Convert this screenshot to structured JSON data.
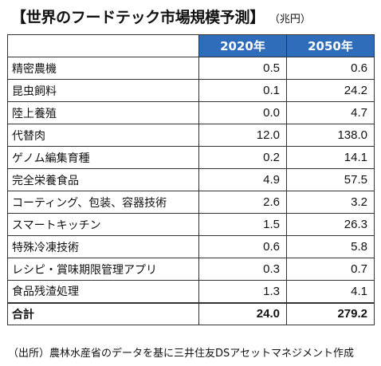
{
  "header": {
    "title": "【世界のフードテック市場規模予測】",
    "unit": "（兆円）"
  },
  "table": {
    "columns": [
      "",
      "2020年",
      "2050年"
    ],
    "rows": [
      {
        "label": "精密農機",
        "y2020": "0.5",
        "y2050": "0.6"
      },
      {
        "label": "昆虫飼料",
        "y2020": "0.1",
        "y2050": "24.2"
      },
      {
        "label": "陸上養殖",
        "y2020": "0.0",
        "y2050": "4.7"
      },
      {
        "label": "代替肉",
        "y2020": "12.0",
        "y2050": "138.0"
      },
      {
        "label": "ゲノム編集育種",
        "y2020": "0.2",
        "y2050": "14.1"
      },
      {
        "label": "完全栄養食品",
        "y2020": "4.9",
        "y2050": "57.5"
      },
      {
        "label": "コーティング、包装、容器技術",
        "y2020": "2.6",
        "y2050": "3.2"
      },
      {
        "label": "スマートキッチン",
        "y2020": "1.5",
        "y2050": "26.3"
      },
      {
        "label": "特殊冷凍技術",
        "y2020": "0.6",
        "y2050": "5.8"
      },
      {
        "label": "レシピ・賞味期限管理アプリ",
        "y2020": "0.3",
        "y2050": "0.7"
      },
      {
        "label": "食品残渣処理",
        "y2020": "1.3",
        "y2050": "4.1"
      }
    ],
    "total": {
      "label": "合計",
      "y2020": "24.0",
      "y2050": "279.2"
    }
  },
  "footer": {
    "source": "（出所）農林水産省のデータを基に三井住友DSアセットマネジメント作成"
  },
  "colors": {
    "header_background": "#2f6dbb",
    "header_text": "#ffffff",
    "border": "#333333"
  }
}
